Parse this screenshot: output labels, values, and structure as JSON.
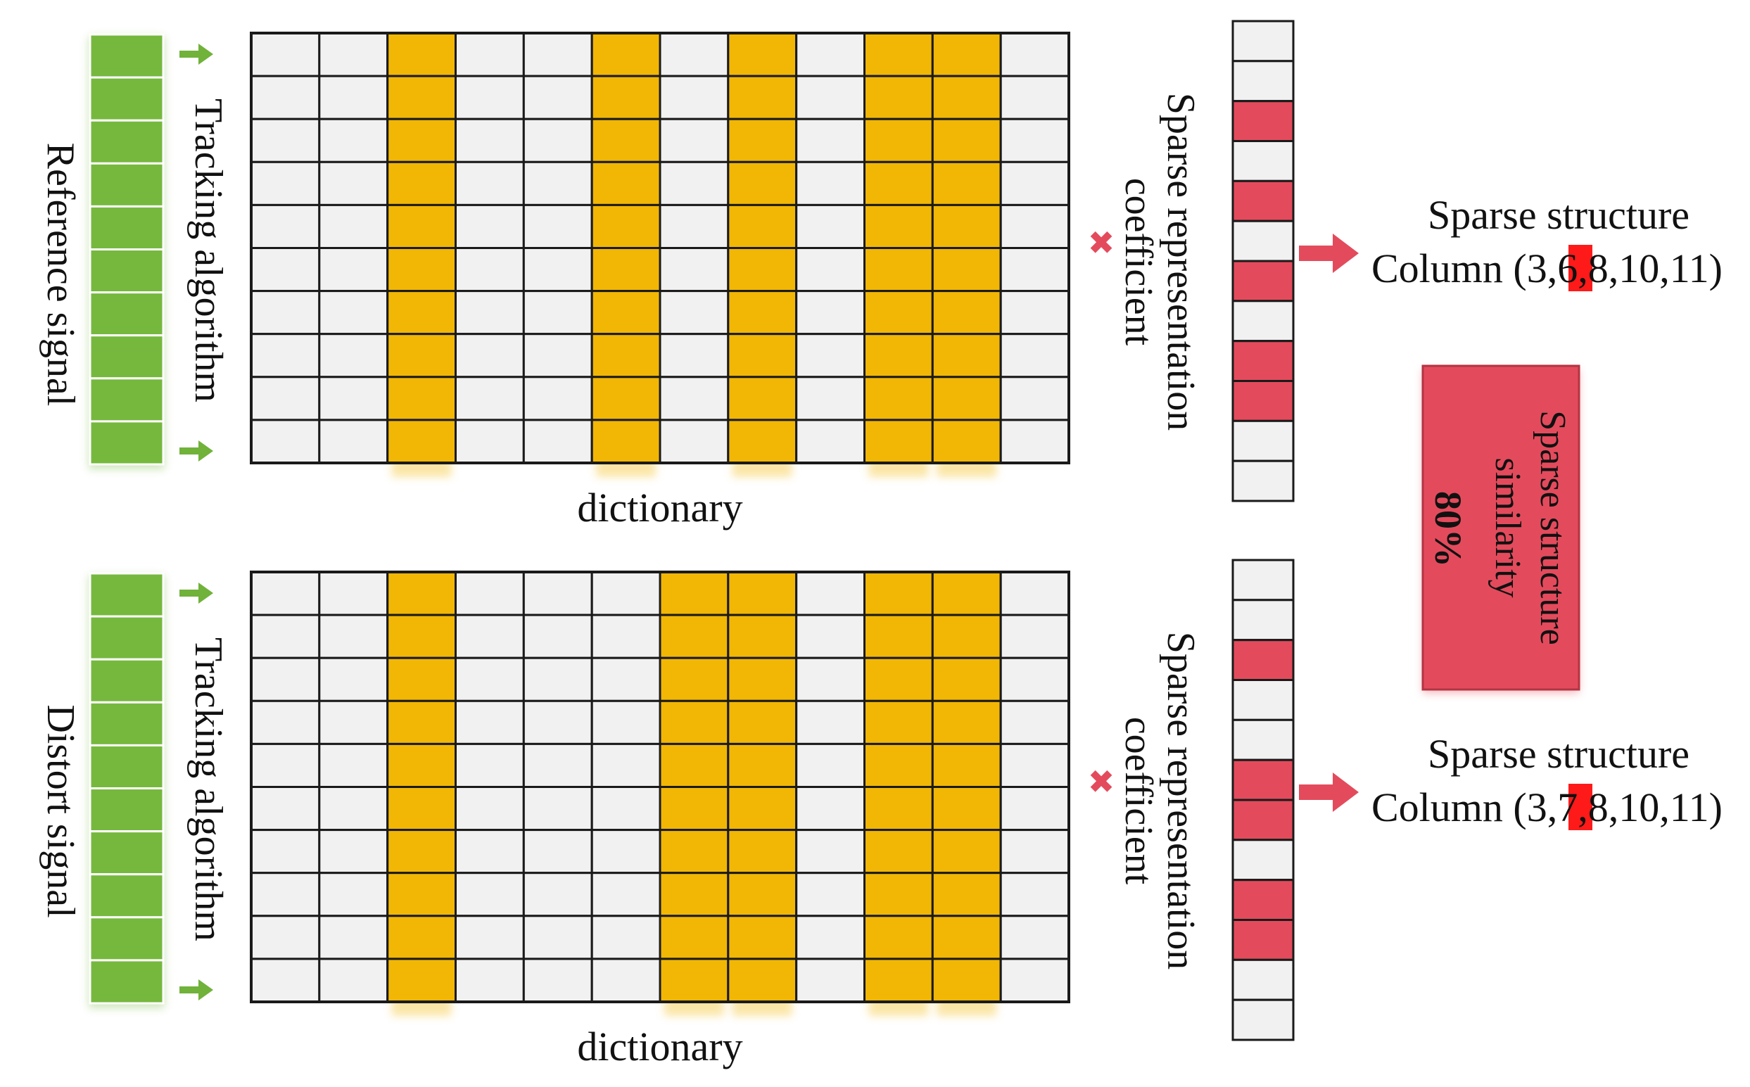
{
  "colors": {
    "signal": "#76b83e",
    "selected_column": "#f2b705",
    "active_coefficient": "#e34b5c",
    "cell": "#f1f1f1",
    "highlight": "#ff1a1a"
  },
  "dictionary_grid": {
    "rows": 10,
    "columns": 12
  },
  "reference": {
    "signal_label": "Reference signal",
    "algorithm_label": "Tracking algorithm",
    "dictionary_label": "dictionary",
    "multiply_symbol": "✖",
    "coefficient_label_line1": "Sparse representation",
    "coefficient_label_line2": "coefficient",
    "selected_columns": [
      3,
      6,
      8,
      10,
      11
    ],
    "coefficient_active": [
      false,
      false,
      true,
      false,
      true,
      false,
      true,
      false,
      true,
      true,
      false,
      false
    ],
    "structure_title": "Sparse structure",
    "structure_prefix": "Column (3,",
    "structure_highlight": "6",
    "structure_suffix": ",8,10,11)"
  },
  "distort": {
    "signal_label": "Distort signal",
    "algorithm_label": "Tracking algorithm",
    "dictionary_label": "dictionary",
    "multiply_symbol": "✖",
    "coefficient_label_line1": "Sparse representation",
    "coefficient_label_line2": "coefficient",
    "selected_columns": [
      3,
      7,
      8,
      10,
      11
    ],
    "coefficient_active": [
      false,
      false,
      true,
      false,
      false,
      true,
      true,
      false,
      true,
      true,
      false,
      false
    ],
    "structure_title": "Sparse structure",
    "structure_prefix": "Column (3,",
    "structure_highlight": "7",
    "structure_suffix": ",8,10,11)"
  },
  "similarity": {
    "line1": "Sparse structure",
    "line2": "similarity",
    "value": "80%"
  }
}
